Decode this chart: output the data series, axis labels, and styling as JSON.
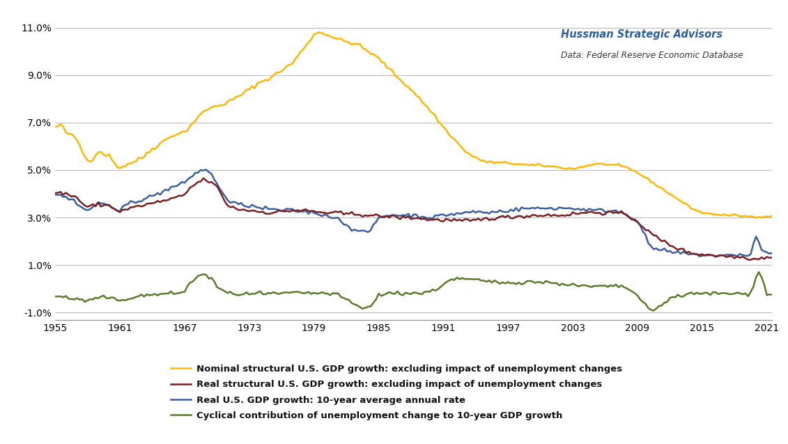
{
  "annotation_title": "Hussman Strategic Advisors",
  "annotation_subtitle": "Data: Federal Reserve Economic Database",
  "ylim": [
    -1.3,
    11.6
  ],
  "yticks": [
    -1.0,
    1.0,
    3.0,
    5.0,
    7.0,
    9.0,
    11.0
  ],
  "xlim": [
    1955,
    2021.5
  ],
  "xticks": [
    1955,
    1961,
    1967,
    1973,
    1979,
    1985,
    1991,
    1997,
    2003,
    2009,
    2015,
    2021
  ],
  "line_colors": {
    "nominal": "#FFB700",
    "real_structural": "#7B2020",
    "real_gdp": "#3A5FA0",
    "cyclical": "#5B7A2A"
  },
  "line_widths": {
    "nominal": 1.8,
    "real_structural": 1.8,
    "real_gdp": 1.8,
    "cyclical": 1.8
  },
  "legend_labels": [
    "Nominal structural U.S. GDP growth: excluding impact of unemployment changes",
    "Real structural U.S. GDP growth: excluding impact of unemployment changes",
    "Real U.S. GDP growth: 10-year average annual rate",
    "Cyclical contribution of unemployment change to 10-year GDP growth"
  ],
  "background_color": "#FFFFFF",
  "grid_color": "#BBBBBB"
}
